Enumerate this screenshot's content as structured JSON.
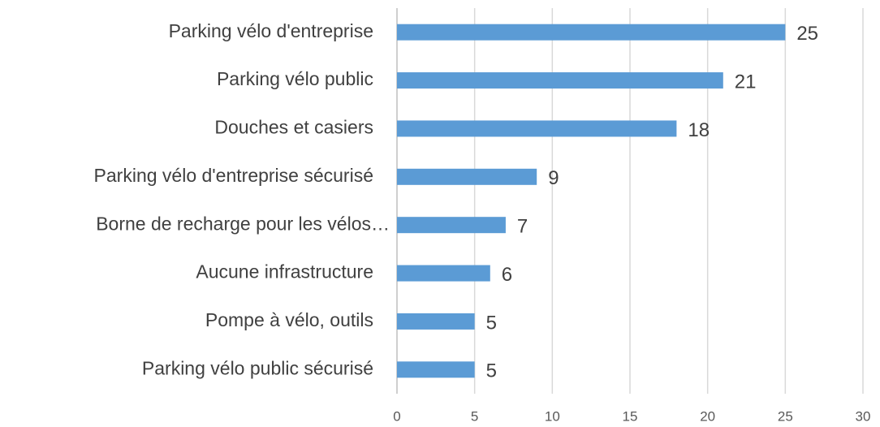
{
  "chart_data": {
    "type": "bar",
    "orientation": "horizontal",
    "categories": [
      "Parking vélo d'entreprise",
      "Parking vélo public",
      "Douches et casiers",
      "Parking vélo d'entreprise sécurisé",
      "Borne de recharge pour les vélos…",
      "Aucune infrastructure",
      "Pompe à vélo, outils",
      "Parking vélo public sécurisé"
    ],
    "values": [
      25,
      21,
      18,
      9,
      7,
      6,
      5,
      5
    ],
    "color": "#5b9bd5",
    "xlim": [
      0,
      30
    ],
    "xticks": [
      0,
      5,
      10,
      15,
      20,
      25,
      30
    ],
    "grid": true
  }
}
